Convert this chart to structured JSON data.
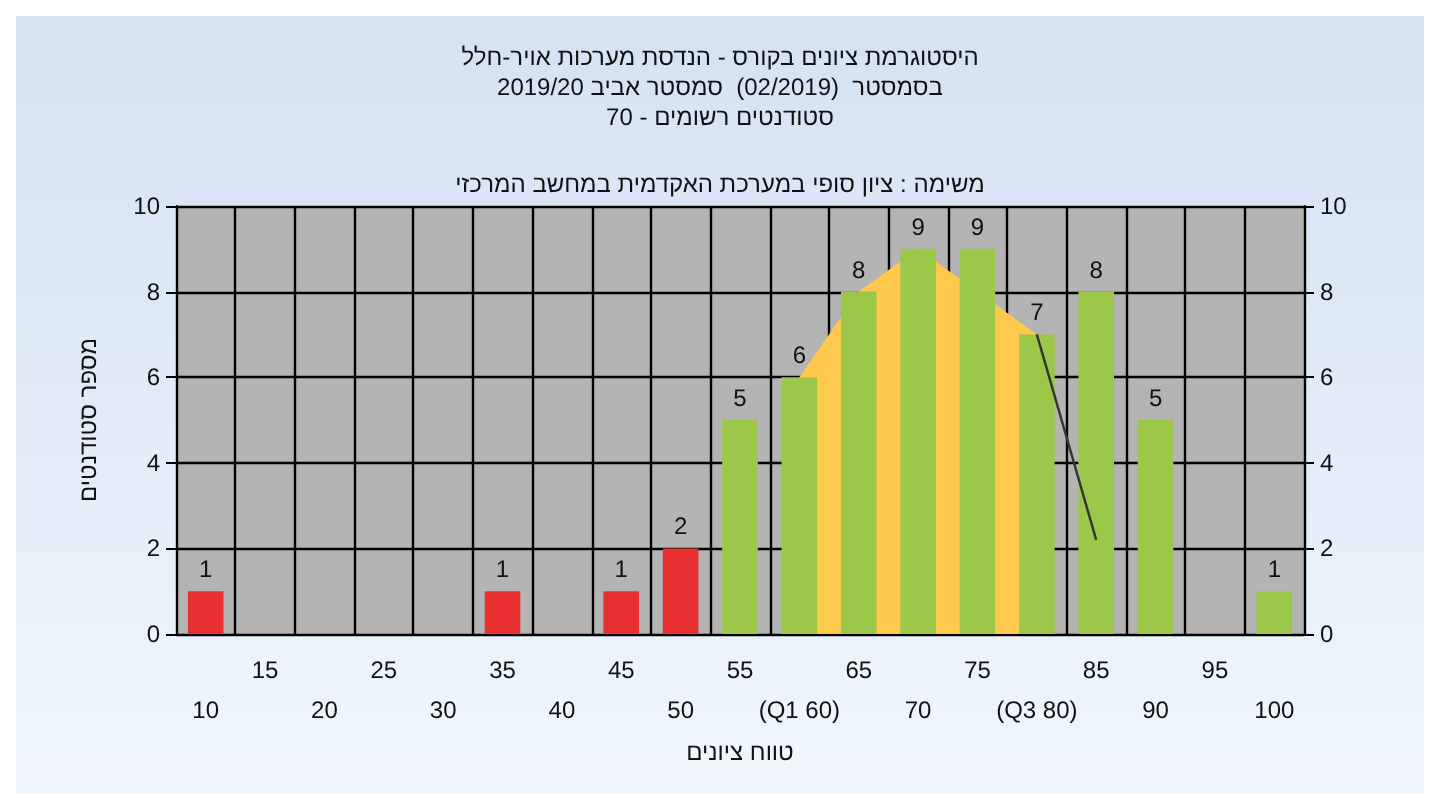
{
  "chart_data": {
    "type": "bar",
    "title": "היסטוגרמת ציונים בקורס - הנדסת מערכות אויר-חלל\nבסמסטר  (02/2019)  סמסטר אביב 2019/20\nסטודנטים רשומים - 70",
    "xlabel": "טווח ציונים",
    "ylabel": "מספר סטודנטים",
    "annotations": [
      "משימה : ציון סופי במערכת האקדמית במחשב המרכזי"
    ],
    "categories": [
      "10",
      "15",
      "20",
      "25",
      "30",
      "35",
      "40",
      "45",
      "50",
      "55",
      "(Q1 60)",
      "65",
      "70",
      "75",
      "(Q3 80)",
      "85",
      "90",
      "95",
      "100"
    ],
    "series": [
      {
        "type": "area",
        "color": "#ffc94d",
        "values": [
          null,
          null,
          null,
          null,
          null,
          null,
          null,
          null,
          null,
          null,
          6,
          8,
          9,
          null,
          7,
          null,
          null,
          null,
          null
        ]
      },
      {
        "type": "line",
        "color": "#333333",
        "values": [
          null,
          null,
          null,
          null,
          null,
          null,
          null,
          null,
          null,
          null,
          null,
          null,
          null,
          null,
          7,
          2.2,
          null,
          null,
          null
        ]
      },
      {
        "values": [
          1,
          0,
          0,
          0,
          0,
          1,
          0,
          1,
          2,
          5,
          6,
          8,
          9,
          9,
          7,
          8,
          5,
          0,
          1
        ],
        "colors": [
          "#e83030",
          "#e83030",
          "#e83030",
          "#e83030",
          "#e83030",
          "#e83030",
          "#e83030",
          "#e83030",
          "#e83030",
          "#9cc84a",
          "#9cc84a",
          "#9cc84a",
          "#9cc84a",
          "#9cc84a",
          "#9cc84a",
          "#9cc84a",
          "#9cc84a",
          "#9cc84a",
          "#9cc84a"
        ],
        "value_labels": [
          "1",
          null,
          null,
          null,
          null,
          "1",
          null,
          "1",
          "2",
          "5",
          "6",
          "8",
          "9",
          "9",
          "7",
          "8",
          "5",
          null,
          "1"
        ]
      }
    ],
    "ylim": [
      0,
      10
    ],
    "yticks": [
      0,
      2,
      4,
      6,
      8,
      10
    ],
    "y2lim": [
      0,
      10
    ],
    "y2ticks": [
      0,
      2,
      4,
      6,
      8,
      10
    ],
    "grid": true
  }
}
